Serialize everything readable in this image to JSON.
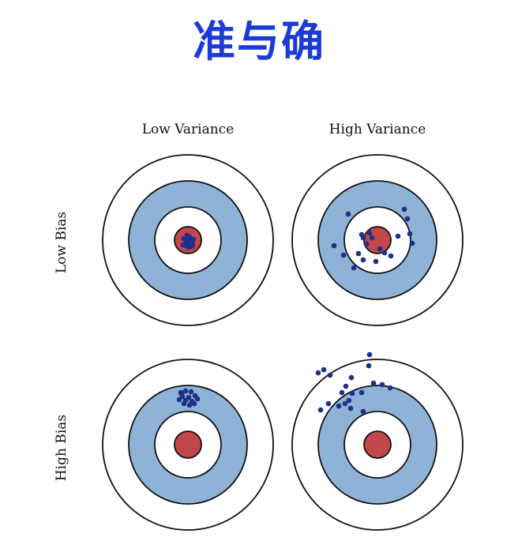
{
  "title": "准与确",
  "columns": [
    "Low Variance",
    "High Variance"
  ],
  "rows": [
    "Low Bias",
    "High Bias"
  ],
  "colors": {
    "title": "#1a3bd6",
    "ring_outer": "#ffffff",
    "ring_middle": "#8fb3d6",
    "bullseye": "#c0474a",
    "shot": "#1f2f8a",
    "stroke": "#111111"
  },
  "targets": [
    {
      "name": "low-bias-low-variance",
      "shots": [
        [
          0,
          0
        ],
        [
          4,
          2
        ],
        [
          -3,
          4
        ],
        [
          2,
          -4
        ],
        [
          -5,
          -2
        ],
        [
          6,
          5
        ],
        [
          -2,
          7
        ],
        [
          1,
          9
        ],
        [
          -6,
          6
        ],
        [
          7,
          -1
        ],
        [
          3,
          3
        ],
        [
          -1,
          -6
        ],
        [
          5,
          8
        ]
      ]
    },
    {
      "name": "low-bias-high-variance",
      "shots": [
        [
          -37,
          -33
        ],
        [
          34,
          -39
        ],
        [
          38,
          -27
        ],
        [
          -20,
          -7
        ],
        [
          -10,
          -9
        ],
        [
          -14,
          5
        ],
        [
          -55,
          7
        ],
        [
          -43,
          19
        ],
        [
          -24,
          17
        ],
        [
          -18,
          25
        ],
        [
          3,
          11
        ],
        [
          9,
          16
        ],
        [
          17,
          20
        ],
        [
          -2,
          27
        ],
        [
          41,
          -8
        ],
        [
          44,
          4
        ],
        [
          26,
          -5
        ],
        [
          -30,
          35
        ],
        [
          -18,
          -3
        ],
        [
          -7,
          -3
        ]
      ]
    },
    {
      "name": "high-bias-low-variance",
      "shots": [
        [
          -9,
          -66
        ],
        [
          -3,
          -68
        ],
        [
          4,
          -67
        ],
        [
          -7,
          -61
        ],
        [
          1,
          -60
        ],
        [
          9,
          -62
        ],
        [
          -11,
          -57
        ],
        [
          -3,
          -56
        ],
        [
          5,
          -55
        ],
        [
          12,
          -58
        ],
        [
          -5,
          -52
        ],
        [
          2,
          -50
        ],
        [
          8,
          -52
        ],
        [
          -8,
          -64
        ]
      ]
    },
    {
      "name": "high-bias-high-variance",
      "shots": [
        [
          -68,
          -95
        ],
        [
          -75,
          -91
        ],
        [
          -60,
          -88
        ],
        [
          -10,
          -114
        ],
        [
          -11,
          -100
        ],
        [
          -5,
          -78
        ],
        [
          6,
          -76
        ],
        [
          16,
          -72
        ],
        [
          -33,
          -85
        ],
        [
          -40,
          -74
        ],
        [
          -45,
          -66
        ],
        [
          -32,
          -65
        ],
        [
          -36,
          -56
        ],
        [
          -41,
          -52
        ],
        [
          -49,
          -49
        ],
        [
          -34,
          -46
        ],
        [
          -72,
          -44
        ],
        [
          -62,
          -52
        ],
        [
          -18,
          -42
        ],
        [
          -20,
          -66
        ]
      ]
    }
  ]
}
